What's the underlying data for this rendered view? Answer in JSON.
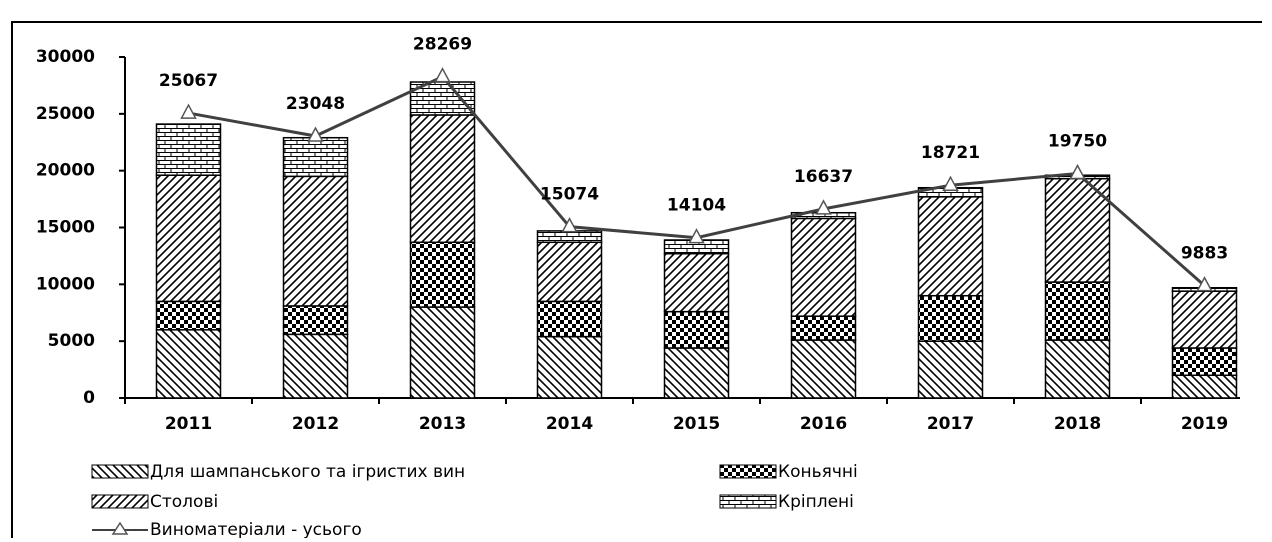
{
  "chart_data": {
    "type": "stacked_bar_line",
    "categories": [
      "2011",
      "2012",
      "2013",
      "2014",
      "2015",
      "2016",
      "2017",
      "2018",
      "2019"
    ],
    "series": [
      {
        "name": "Для шампанського та ігристих вин",
        "pattern": "back-diagonal",
        "color": "#000000",
        "values": [
          6000,
          5600,
          8000,
          5400,
          4400,
          5100,
          5000,
          5100,
          2000
        ]
      },
      {
        "name": "Коньячні",
        "pattern": "checker",
        "color": "#000000",
        "values": [
          2500,
          2500,
          5700,
          3100,
          3200,
          2100,
          4000,
          5100,
          2400
        ]
      },
      {
        "name": "Столові",
        "pattern": "diagonal",
        "color": "#000000",
        "values": [
          11100,
          11400,
          11200,
          5200,
          5100,
          8600,
          8700,
          9100,
          5000
        ]
      },
      {
        "name": "Кріплені",
        "pattern": "brick",
        "color": "#000000",
        "values": [
          4500,
          3400,
          2900,
          1000,
          1200,
          500,
          800,
          300,
          300
        ]
      }
    ],
    "line": {
      "name": "Виноматеріали  - усього",
      "color": "#404040",
      "values": [
        25067,
        23048,
        28269,
        15074,
        14104,
        16637,
        18721,
        19750,
        9883
      ]
    },
    "ylim": [
      0,
      30000
    ],
    "yticks": [
      0,
      5000,
      10000,
      15000,
      20000,
      25000,
      30000
    ]
  }
}
